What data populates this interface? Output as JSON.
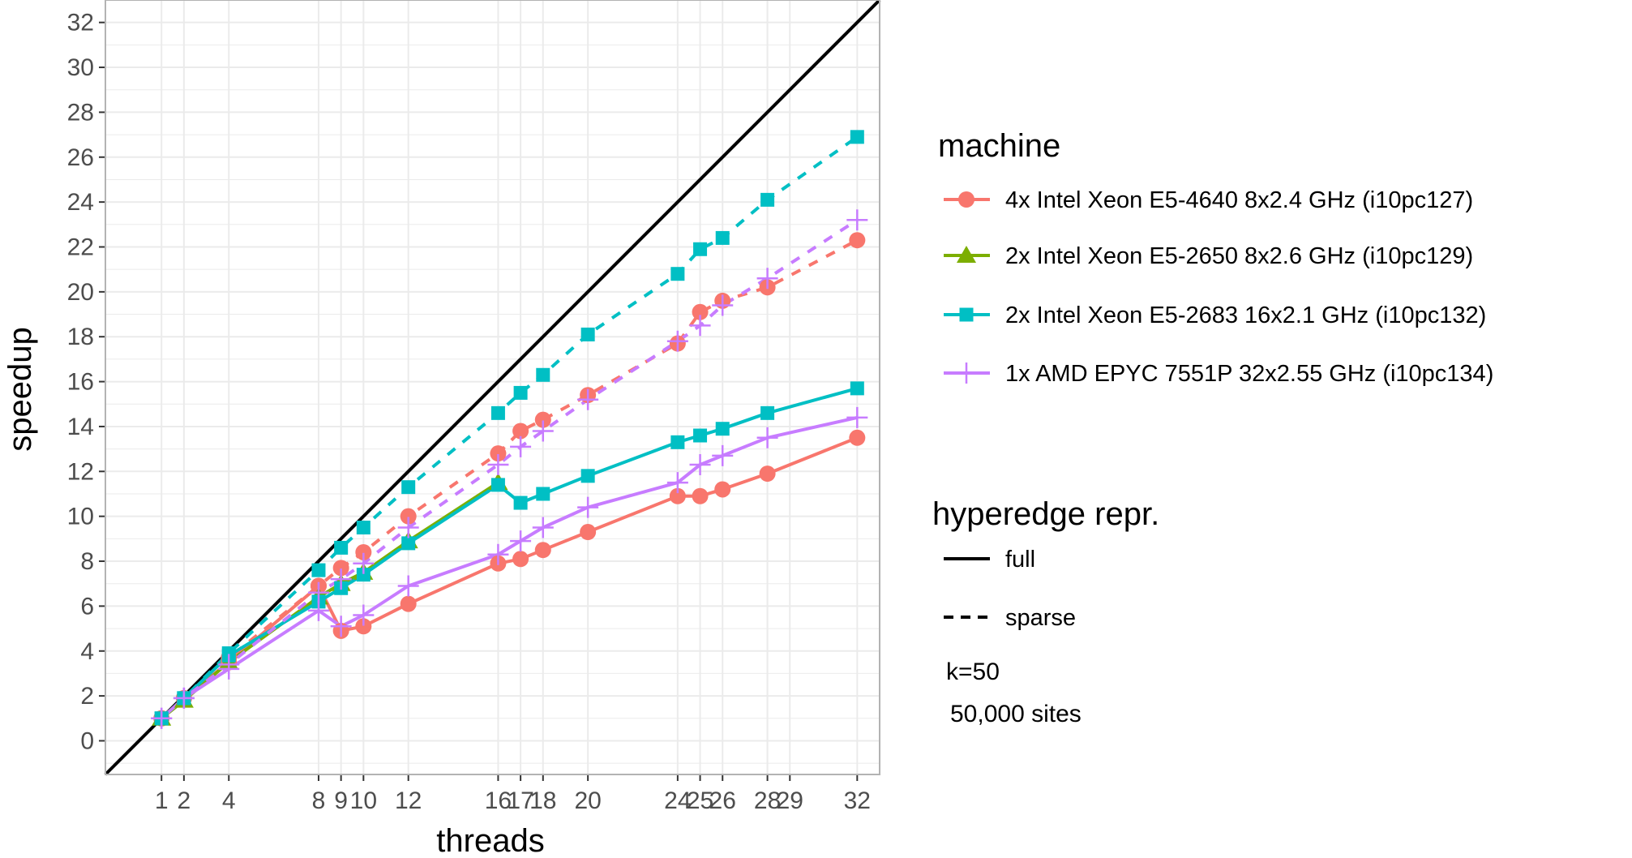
{
  "chart_data": {
    "type": "line",
    "xlabel": "threads",
    "ylabel": "speedup",
    "xlim": [
      -1.5,
      33
    ],
    "ylim": [
      -1.5,
      33
    ],
    "x_ticks": [
      1,
      2,
      4,
      8,
      9,
      10,
      12,
      16,
      17,
      18,
      20,
      24,
      25,
      26,
      28,
      29,
      32
    ],
    "y_ticks": [
      0,
      2,
      4,
      6,
      8,
      10,
      12,
      14,
      16,
      18,
      20,
      22,
      24,
      26,
      28,
      30,
      32
    ],
    "grid": true,
    "reference_line": {
      "description": "ideal speedup y = x",
      "color": "#000000"
    },
    "legend_placement": "right",
    "legend_machine_title": "machine",
    "legend_repr_title": "hyperedge repr.",
    "machines": [
      {
        "name": "4x Intel Xeon E5-4640 8x2.4 GHz (i10pc127)",
        "color": "#F8766D",
        "marker": "circle"
      },
      {
        "name": "2x Intel Xeon E5-2650 8x2.6 GHz (i10pc129)",
        "color": "#7CAE00",
        "marker": "triangle"
      },
      {
        "name": "2x Intel Xeon E5-2683 16x2.1 GHz (i10pc132)",
        "color": "#00BFC4",
        "marker": "square"
      },
      {
        "name": "1x AMD EPYC 7551P 32x2.55 GHz (i10pc134)",
        "color": "#C77CFF",
        "marker": "plus"
      }
    ],
    "representations": [
      {
        "name": "full",
        "linetype": "solid"
      },
      {
        "name": "sparse",
        "linetype": "dashed"
      }
    ],
    "annotation_lines": [
      "k=50",
      "50,000 sites"
    ],
    "series": [
      {
        "machine": 0,
        "repr": "full",
        "x": [
          1,
          2,
          4,
          8,
          9,
          10,
          12,
          16,
          17,
          18,
          20,
          24,
          25,
          26,
          28,
          32
        ],
        "y": [
          1.0,
          1.9,
          3.5,
          6.9,
          4.9,
          5.1,
          6.1,
          7.9,
          8.1,
          8.5,
          9.3,
          10.9,
          10.9,
          11.2,
          11.9,
          13.5
        ]
      },
      {
        "machine": 0,
        "repr": "sparse",
        "x": [
          1,
          2,
          4,
          8,
          9,
          10,
          12,
          16,
          17,
          18,
          20,
          24,
          25,
          26,
          28,
          32
        ],
        "y": [
          1.0,
          1.9,
          3.7,
          6.9,
          7.7,
          8.4,
          10.0,
          12.8,
          13.8,
          14.3,
          15.4,
          17.7,
          19.1,
          19.6,
          20.2,
          22.3
        ]
      },
      {
        "machine": 1,
        "repr": "full",
        "x": [
          1,
          2,
          4,
          8,
          9,
          10,
          12,
          16
        ],
        "y": [
          1.0,
          1.8,
          3.5,
          6.4,
          7.0,
          7.5,
          8.9,
          11.5
        ]
      },
      {
        "machine": 2,
        "repr": "full",
        "x": [
          1,
          2,
          4,
          8,
          9,
          10,
          12,
          16,
          17,
          18,
          20,
          24,
          25,
          26,
          28,
          32
        ],
        "y": [
          1.0,
          1.9,
          3.8,
          6.2,
          6.8,
          7.4,
          8.8,
          11.4,
          10.6,
          11.0,
          11.8,
          13.3,
          13.6,
          13.9,
          14.6,
          15.7
        ]
      },
      {
        "machine": 2,
        "repr": "sparse",
        "x": [
          1,
          2,
          4,
          8,
          9,
          10,
          12,
          16,
          17,
          18,
          20,
          24,
          25,
          26,
          28,
          32
        ],
        "y": [
          1.0,
          1.9,
          3.9,
          7.6,
          8.6,
          9.5,
          11.3,
          14.6,
          15.5,
          16.3,
          18.1,
          20.8,
          21.9,
          22.4,
          24.1,
          26.9
        ]
      },
      {
        "machine": 3,
        "repr": "full",
        "x": [
          1,
          2,
          4,
          8,
          9,
          10,
          12,
          16,
          17,
          18,
          20,
          24,
          25,
          26,
          28,
          32
        ],
        "y": [
          1.0,
          1.9,
          3.2,
          5.8,
          5.1,
          5.6,
          6.9,
          8.3,
          8.9,
          9.5,
          10.4,
          11.5,
          12.3,
          12.7,
          13.5,
          14.4
        ]
      },
      {
        "machine": 3,
        "repr": "sparse",
        "x": [
          1,
          2,
          4,
          8,
          9,
          10,
          12,
          16,
          17,
          18,
          20,
          24,
          25,
          26,
          28,
          32
        ],
        "y": [
          1.0,
          1.9,
          3.4,
          6.6,
          7.2,
          7.9,
          9.5,
          12.3,
          13.1,
          13.8,
          15.2,
          17.8,
          18.5,
          19.4,
          20.6,
          23.2
        ]
      }
    ]
  }
}
